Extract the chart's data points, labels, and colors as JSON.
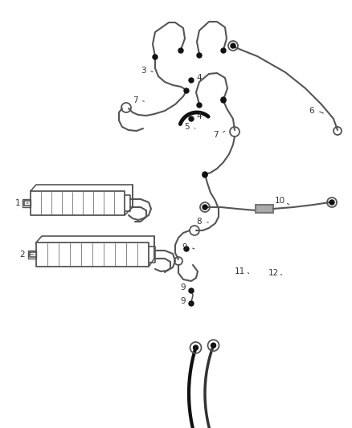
{
  "background_color": "#ffffff",
  "line_color": "#555555",
  "dark_line_color": "#111111",
  "label_color": "#333333",
  "label_fontsize": 7.5,
  "fig_width": 4.38,
  "fig_height": 5.33,
  "dpi": 100
}
